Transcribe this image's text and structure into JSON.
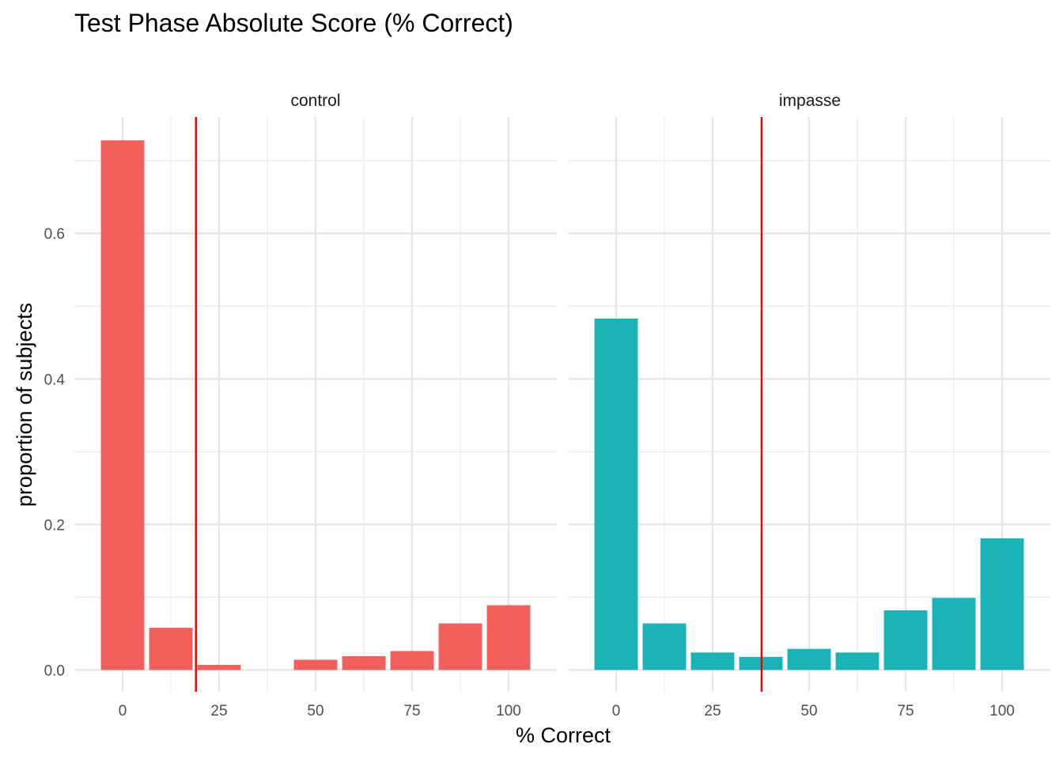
{
  "title": "Test Phase Absolute Score (% Correct)",
  "xlabel": "% Correct",
  "ylabel": "proportion of subjects",
  "chart_data": {
    "type": "bar",
    "title": "Test Phase Absolute Score (% Correct)",
    "xlabel": "% Correct",
    "ylabel": "proportion of subjects",
    "xlim": [
      -12.5,
      112.5
    ],
    "ylim": [
      -0.03,
      0.76
    ],
    "x_ticks": [
      0,
      25,
      50,
      75,
      100
    ],
    "y_ticks": [
      0.0,
      0.2,
      0.4,
      0.6
    ],
    "y_tick_labels": [
      "0.0",
      "0.2",
      "0.4",
      "0.6"
    ],
    "grid": true,
    "facets": [
      {
        "name": "control",
        "color": "#F3605C",
        "x": [
          0,
          12.5,
          25,
          37.5,
          50,
          62.5,
          75,
          87.5,
          100
        ],
        "values": [
          0.728,
          0.058,
          0.007,
          0.0,
          0.014,
          0.019,
          0.026,
          0.064,
          0.089
        ],
        "reference_line_x": 19,
        "reference_line_color": "#EE0000"
      },
      {
        "name": "impasse",
        "color": "#1AB4B8",
        "x": [
          0,
          12.5,
          25,
          37.5,
          50,
          62.5,
          75,
          87.5,
          100
        ],
        "values": [
          0.483,
          0.064,
          0.024,
          0.018,
          0.029,
          0.024,
          0.082,
          0.099,
          0.181
        ],
        "reference_line_x": 37.7,
        "reference_line_color": "#EE0000"
      }
    ]
  }
}
